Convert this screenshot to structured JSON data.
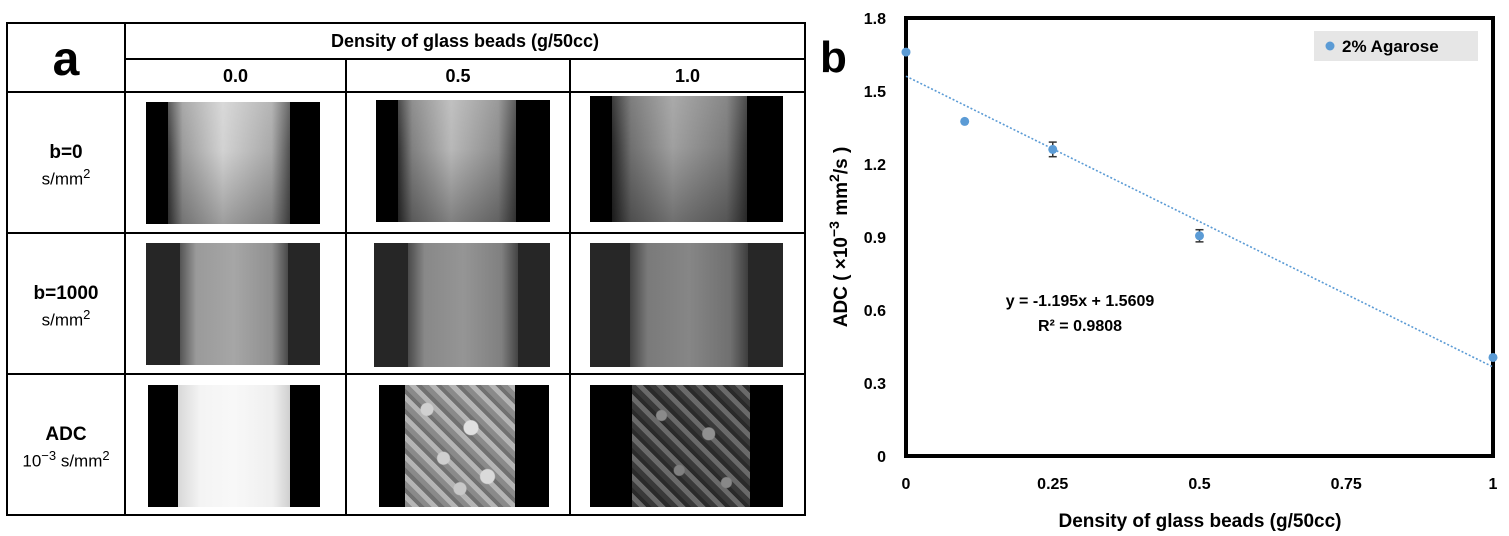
{
  "panel_a": {
    "letter": "a",
    "header_title": "Density of glass beads (g/50cc)",
    "columns": [
      "0.0",
      "0.5",
      "1.0"
    ],
    "rows": [
      {
        "main": "b=0",
        "unit_prefix": "",
        "unit": "s/mm",
        "unit_sup": "2"
      },
      {
        "main": "b=1000",
        "unit_prefix": "",
        "unit": "s/mm",
        "unit_sup": "2"
      },
      {
        "main": "ADC",
        "unit_prefix": "10",
        "unit_prefix_sup": "−3",
        "unit": " s/mm",
        "unit_sup": "2"
      }
    ]
  },
  "panel_b": {
    "letter": "b",
    "equation": "y = -1.195x + 1.5609",
    "r_squared": "R² = 0.9808"
  },
  "chart_data": {
    "type": "scatter",
    "xlabel": "Density of glass beads (g/50cc)",
    "ylabel_prefix": "ADC ( ×10",
    "ylabel_sup1": "−3",
    "ylabel_mid": " mm",
    "ylabel_sup2": "2",
    "ylabel_suffix": "/s )",
    "xlim": [
      0,
      1
    ],
    "ylim": [
      0,
      1.8
    ],
    "x_ticks": [
      "0",
      "0.25",
      "0.5",
      "0.75",
      "1"
    ],
    "y_ticks": [
      "0",
      "0.3",
      "0.6",
      "0.9",
      "1.2",
      "1.5",
      "1.8"
    ],
    "grid": false,
    "legend_position": "top-right",
    "series": [
      {
        "name": "2% Agarose",
        "color": "#5b9bd5",
        "x": [
          0,
          0.1,
          0.25,
          0.5,
          1.0
        ],
        "y": [
          1.66,
          1.375,
          1.26,
          0.905,
          0.405
        ],
        "error": [
          0,
          0,
          0.03,
          0.025,
          0
        ]
      }
    ],
    "trendline": {
      "type": "linear",
      "slope": -1.195,
      "intercept": 1.5609,
      "style": "dotted",
      "color": "#5b9bd5"
    }
  }
}
